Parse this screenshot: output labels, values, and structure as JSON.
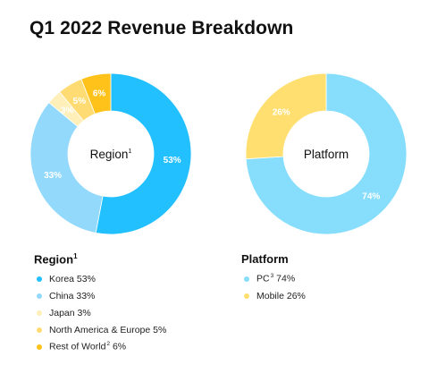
{
  "title": "Q1 2022 Revenue Breakdown",
  "colors": {
    "korea": "#22c0ff",
    "china": "#93d9fb",
    "japan": "#ffefb8",
    "na_europe": "#ffdc73",
    "rest": "#ffc21a",
    "pc": "#87defc",
    "mobile": "#ffdf70",
    "label_white": "#ffffff"
  },
  "chart_data": [
    {
      "type": "pie",
      "center_label": "Region",
      "center_sup": "1",
      "legend_title": "Region",
      "legend_sup": "1",
      "slices": [
        {
          "label": "Korea",
          "sup": "",
          "value": 53,
          "text": "53%",
          "color_key": "korea",
          "legend": "Korea 53%"
        },
        {
          "label": "China",
          "sup": "",
          "value": 33,
          "text": "33%",
          "color_key": "china",
          "legend": "China 33%"
        },
        {
          "label": "Japan",
          "sup": "",
          "value": 3,
          "text": "3%",
          "color_key": "japan",
          "legend": "Japan 3%"
        },
        {
          "label": "North America & Europe",
          "sup": "",
          "value": 5,
          "text": "5%",
          "color_key": "na_europe",
          "legend": "North America & Europe 5%"
        },
        {
          "label": "Rest of World",
          "sup": "2",
          "value": 6,
          "text": "6%",
          "color_key": "rest",
          "legend_pre": "Rest of World",
          "legend_post": " 6%"
        }
      ]
    },
    {
      "type": "pie",
      "center_label": "Platform",
      "legend_title": "Platform",
      "slices": [
        {
          "label": "PC",
          "sup": "3",
          "value": 74,
          "text": "74%",
          "color_key": "pc",
          "legend_pre": "PC",
          "legend_post": " 74%"
        },
        {
          "label": "Mobile",
          "sup": "",
          "value": 26,
          "text": "26%",
          "color_key": "mobile",
          "legend": "Mobile 26%"
        }
      ]
    }
  ]
}
